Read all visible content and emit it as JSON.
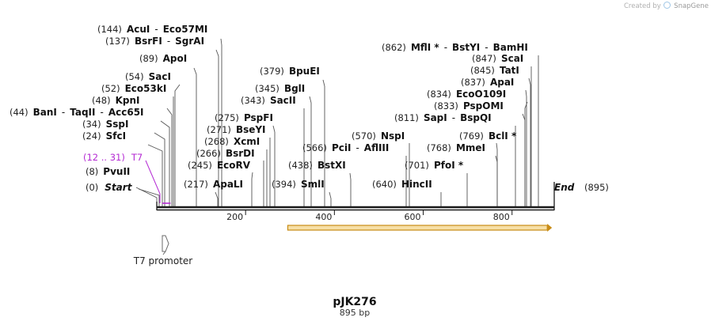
{
  "plasmid": {
    "name": "pJK276",
    "length_label": "895 bp",
    "length": 895
  },
  "credit": {
    "text": "Created by",
    "brand": "SnapGene"
  },
  "colors": {
    "backbone": "#1a1a1a",
    "site_line": "#555555",
    "t7": "#b42ad3",
    "orf_fill": "#f6dfa6",
    "orf_stroke": "#c88c16",
    "promoter": "#6a6a6a"
  },
  "ticks": [
    200,
    400,
    600,
    800
  ],
  "start_label": {
    "pos": "(0)",
    "name": "Start"
  },
  "end_label": {
    "name": "End",
    "pos": "(895)"
  },
  "t7_primer": {
    "pos": "(12 .. 31)",
    "name": "T7",
    "from": 12,
    "to": 31
  },
  "features": [
    {
      "name": "T7 promoter"
    }
  ],
  "orf": {
    "from": 295,
    "to": 890
  },
  "sites": [
    {
      "pos": "(8)",
      "names": [
        "PvuII"
      ],
      "bp": 8
    },
    {
      "pos": "(24)",
      "names": [
        "SfcI"
      ],
      "bp": 24
    },
    {
      "pos": "(34)",
      "names": [
        "SspI"
      ],
      "bp": 34
    },
    {
      "pos": "(44)",
      "names": [
        "BanI",
        "TaqII",
        "Acc65I"
      ],
      "bp": 44
    },
    {
      "pos": "(48)",
      "names": [
        "KpnI"
      ],
      "bp": 48
    },
    {
      "pos": "(52)",
      "names": [
        "Eco53kI"
      ],
      "bp": 52
    },
    {
      "pos": "(54)",
      "names": [
        "SacI"
      ],
      "bp": 54
    },
    {
      "pos": "(89)",
      "names": [
        "ApoI"
      ],
      "bp": 89
    },
    {
      "pos": "(137)",
      "names": [
        "BsrFI",
        "SgrAI"
      ],
      "bp": 137
    },
    {
      "pos": "(144)",
      "names": [
        "AcuI",
        "Eco57MI"
      ],
      "bp": 144
    },
    {
      "pos": "(217)",
      "names": [
        "ApaLI"
      ],
      "bp": 217
    },
    {
      "pos": "(245)",
      "names": [
        "EcoRV"
      ],
      "bp": 245
    },
    {
      "pos": "(266)",
      "names": [
        "BsrDI"
      ],
      "bp": 266
    },
    {
      "pos": "(268)",
      "names": [
        "XcmI"
      ],
      "bp": 268
    },
    {
      "pos": "(271)",
      "names": [
        "BseYI"
      ],
      "bp": 271
    },
    {
      "pos": "(275)",
      "names": [
        "PspFI"
      ],
      "bp": 275
    },
    {
      "pos": "(343)",
      "names": [
        "SacII"
      ],
      "bp": 343
    },
    {
      "pos": "(345)",
      "names": [
        "BglI"
      ],
      "bp": 345
    },
    {
      "pos": "(379)",
      "names": [
        "BpuEI"
      ],
      "bp": 379
    },
    {
      "pos": "(394)",
      "names": [
        "SmlI"
      ],
      "bp": 394
    },
    {
      "pos": "(438)",
      "names": [
        "BstXI"
      ],
      "bp": 438
    },
    {
      "pos": "(566)",
      "names": [
        "PciI",
        "AflIII"
      ],
      "bp": 566
    },
    {
      "pos": "(570)",
      "names": [
        "NspI"
      ],
      "bp": 570
    },
    {
      "pos": "(640)",
      "names": [
        "HincII"
      ],
      "bp": 640
    },
    {
      "pos": "(701)",
      "names": [
        "PfoI *"
      ],
      "bp": 701
    },
    {
      "pos": "(768)",
      "names": [
        "MmeI"
      ],
      "bp": 768
    },
    {
      "pos": "(769)",
      "names": [
        "BclI *"
      ],
      "bp": 769
    },
    {
      "pos": "(811)",
      "names": [
        "SapI",
        "BspQI"
      ],
      "bp": 811
    },
    {
      "pos": "(833)",
      "names": [
        "PspOMI"
      ],
      "bp": 833
    },
    {
      "pos": "(834)",
      "names": [
        "EcoO109I"
      ],
      "bp": 834
    },
    {
      "pos": "(837)",
      "names": [
        "ApaI"
      ],
      "bp": 837
    },
    {
      "pos": "(845)",
      "names": [
        "TatI"
      ],
      "bp": 845
    },
    {
      "pos": "(847)",
      "names": [
        "ScaI"
      ],
      "bp": 847
    },
    {
      "pos": "(862)",
      "names": [
        "MflI *",
        "BstYI",
        "BamHI"
      ],
      "bp": 862
    }
  ]
}
